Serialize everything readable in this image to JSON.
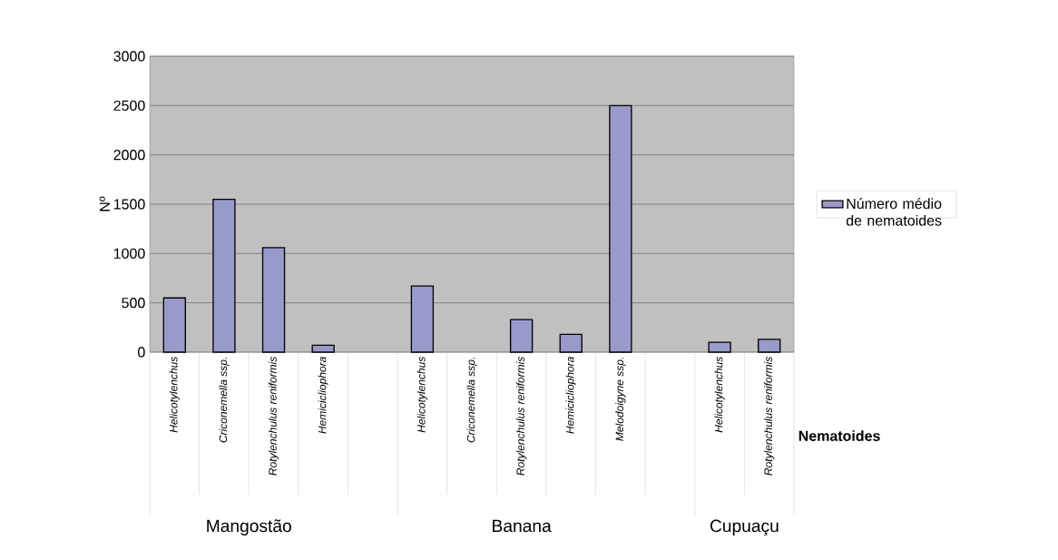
{
  "chart_data": {
    "type": "bar",
    "ylabel": "Nº",
    "xlabel": "Nematoides",
    "categories": [
      "Helicotylenchus",
      "Criconemella ssp.",
      "Rotylenchulus reniformis",
      "Hemicicliophora",
      null,
      "Helicotylenchus",
      "Criconemella ssp.",
      "Rotylenchulus reniformis",
      "Hemicicliophora",
      "Melodoigyne ssp.",
      null,
      "Helicotylenchus",
      "Rotylenchulus reniformis"
    ],
    "series": [
      {
        "name": "Número médio de nematoides",
        "color": "#9999cc",
        "values": [
          550,
          1550,
          1060,
          70,
          null,
          670,
          null,
          330,
          180,
          2500,
          null,
          100,
          130
        ]
      }
    ],
    "annotations": [
      "Mangostão",
      "Banana",
      "Cupuaçu"
    ],
    "ylim": [
      0,
      3000
    ],
    "yticks": [
      0,
      500,
      1000,
      1500,
      2000,
      2500,
      3000
    ],
    "grid": "y",
    "legend": "right"
  }
}
